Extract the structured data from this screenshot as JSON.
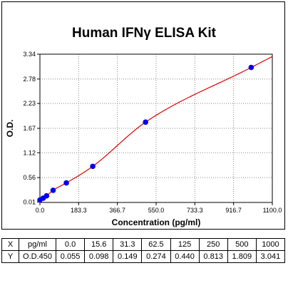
{
  "chart_data": {
    "type": "scatter",
    "title": "Human IFNγ ELISA Kit",
    "xlabel": "Concentration (pg/ml)",
    "ylabel": "O.D.",
    "xlim": [
      0,
      1100
    ],
    "ylim": [
      0,
      3.34
    ],
    "x_ticks": [
      "0.0",
      "183.3",
      "366.7",
      "550.0",
      "733.3",
      "916.7",
      "1100.0"
    ],
    "y_ticks": [
      "0.01",
      "0.56",
      "1.12",
      "1.67",
      "2.23",
      "2.78",
      "3.34"
    ],
    "grid": true,
    "series": [
      {
        "x": [
          0,
          15.6,
          31.3,
          62.5,
          125,
          250,
          500,
          1000
        ],
        "y": [
          0.055,
          0.098,
          0.149,
          0.274,
          0.44,
          0.813,
          1.809,
          3.041
        ],
        "marker_color": "#0000ee",
        "fit_line_color": "#e00000"
      }
    ]
  },
  "table": {
    "row_x": [
      "X",
      "pg/ml",
      "0.0",
      "15.6",
      "31.3",
      "62.5",
      "125",
      "250",
      "500",
      "1000"
    ],
    "row_y": [
      "Y",
      "O.D.450",
      "0.055",
      "0.098",
      "0.149",
      "0.274",
      "0.440",
      "0.813",
      "1.809",
      "3.041"
    ]
  }
}
